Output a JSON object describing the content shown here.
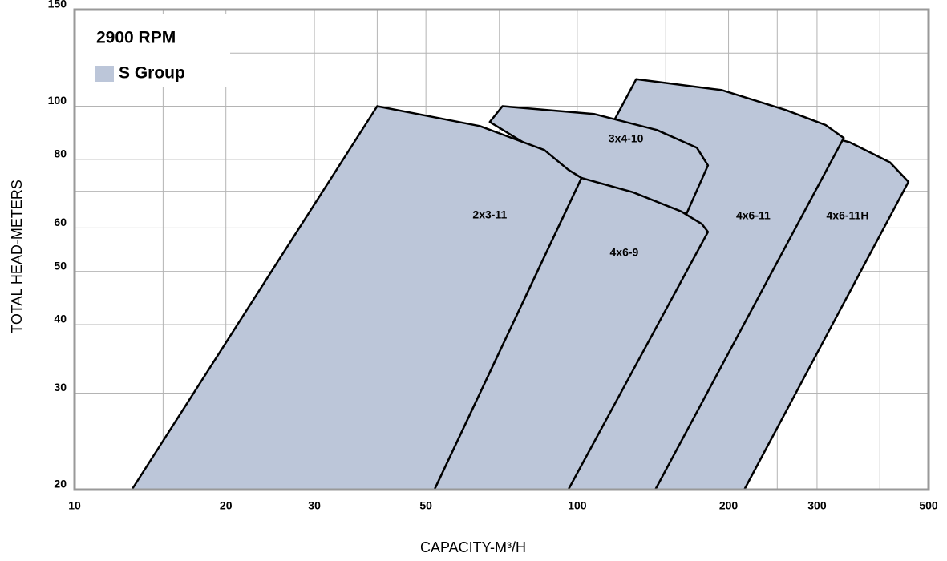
{
  "chart_data": {
    "type": "coverage",
    "subtitle": "2900 RPM",
    "legend": {
      "label": "S Group",
      "color": "#bcc6d9",
      "corner": "top-left"
    },
    "x_label": "CAPACITY-M³/H",
    "y_label": "TOTAL HEAD-METERS",
    "xscale": "log",
    "yscale": "log",
    "grid": true,
    "xlim": [
      10,
      500
    ],
    "ylim": [
      20,
      150
    ],
    "xticks": [
      10,
      20,
      30,
      50,
      100,
      200,
      300,
      500
    ],
    "yticks": [
      20,
      30,
      40,
      50,
      60,
      80,
      100,
      150
    ],
    "xminor": [
      15,
      40,
      70,
      150,
      250,
      400
    ],
    "yminor": [
      70,
      125
    ],
    "series": [
      {
        "name": "4x6-11H",
        "color": "#bcc6d9",
        "x": [
          143,
          240,
          348,
          419,
          456,
          215
        ],
        "values": [
          20,
          94,
          86,
          79,
          72.8,
          20
        ]
      },
      {
        "name": "4x6-11",
        "color": "#bcc6d9",
        "x": [
          96,
          119,
          131,
          194,
          260,
          312,
          339,
          143
        ],
        "values": [
          20,
          95,
          112,
          107,
          98.4,
          92.4,
          87.5,
          20
        ]
      },
      {
        "name": "3x4-10",
        "color": "#bcc6d9",
        "x": [
          67,
          71,
          108,
          144,
          173,
          182,
          165,
          102
        ],
        "values": [
          93.6,
          100,
          96.8,
          90.5,
          84,
          78,
          63.7,
          74
        ]
      },
      {
        "name": "2x3-11",
        "color": "#bcc6d9",
        "x": [
          13,
          40,
          64,
          86,
          96,
          102,
          52
        ],
        "values": [
          20,
          100,
          92,
          83.2,
          76.6,
          74,
          20
        ]
      },
      {
        "name": "4x6-9",
        "color": "#bcc6d9",
        "x": [
          52,
          102,
          129,
          161,
          177,
          182,
          96
        ],
        "values": [
          20,
          74,
          69.7,
          64.3,
          61,
          59,
          20
        ]
      }
    ]
  }
}
